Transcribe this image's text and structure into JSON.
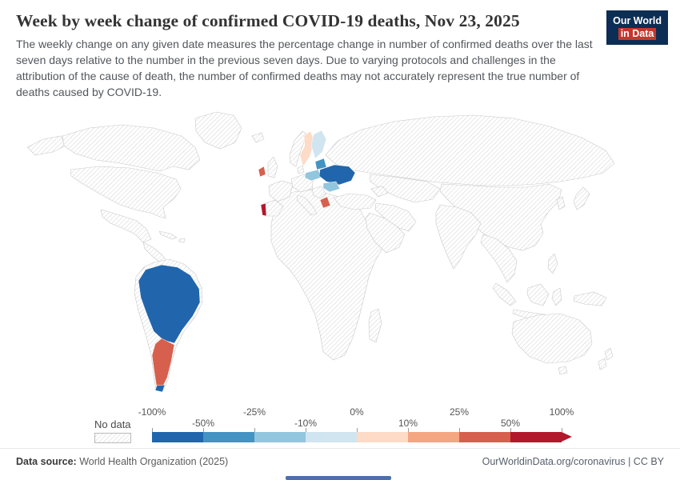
{
  "header": {
    "title": "Week by week change of confirmed COVID-19 deaths, Nov 23, 2025",
    "subtitle": "The weekly change on any given date measures the percentage change in number of confirmed deaths over the last seven days relative to the number in the previous seven days. Due to varying protocols and challenges in the attribution of the cause of death, the number of confirmed deaths may not accurately represent the true number of deaths caused by COVID-19.",
    "logo": {
      "line1": "Our World",
      "line2": "in Data",
      "bg": "#0d2e54",
      "accent": "#c7362c"
    }
  },
  "legend": {
    "no_data_label": "No data",
    "ticks": [
      {
        "label": "-100%",
        "row": "top"
      },
      {
        "label": "-50%",
        "row": "bottom"
      },
      {
        "label": "-25%",
        "row": "top"
      },
      {
        "label": "-10%",
        "row": "bottom"
      },
      {
        "label": "0%",
        "row": "top"
      },
      {
        "label": "10%",
        "row": "bottom"
      },
      {
        "label": "25%",
        "row": "top"
      },
      {
        "label": "50%",
        "row": "bottom"
      },
      {
        "label": "100%",
        "row": "top"
      }
    ],
    "segment_colors": [
      "#2166ac",
      "#4393c3",
      "#92c5de",
      "#d1e5f0",
      "#fddbc7",
      "#f4a582",
      "#d6604d",
      "#b2182b"
    ],
    "arrow_color": "#b2182b"
  },
  "map": {
    "no_data_style": "hatched",
    "regions": {
      "sa-north": "#2166ac",
      "southern-cone": "#d6604d",
      "sa-tip": "#2166ac",
      "portugal": "#b2182b",
      "ireland": "#d6604d",
      "greece": "#d6604d",
      "ukraine": "#2166ac",
      "sweden": "#fddbc7",
      "finland": "#d1e5f0",
      "poland": "#92c5de",
      "romania": "#92c5de",
      "baltics": "#4393c3"
    }
  },
  "chart_data": {
    "type": "choropleth",
    "title": "Week by week change of confirmed COVID-19 deaths",
    "date": "Nov 23, 2025",
    "unit": "%",
    "scale_type": "diverging",
    "scale_ticks_percent": [
      -100,
      -50,
      -25,
      -10,
      0,
      10,
      25,
      50,
      100
    ],
    "no_data": "hatched",
    "regions": [
      {
        "name": "Brazil",
        "bin": "-100% to -50%",
        "color": "#2166ac"
      },
      {
        "name": "Colombia",
        "bin": "-100% to -50%",
        "color": "#2166ac"
      },
      {
        "name": "Peru",
        "bin": "-100% to -50%",
        "color": "#2166ac"
      },
      {
        "name": "Bolivia",
        "bin": "-100% to -50%",
        "color": "#2166ac"
      },
      {
        "name": "Argentina",
        "bin": "25% to 50%",
        "color": "#d6604d"
      },
      {
        "name": "Chile",
        "bin": "25% to 50%",
        "color": "#d6604d"
      },
      {
        "name": "Portugal",
        "bin": "50% to 100%",
        "color": "#b2182b"
      },
      {
        "name": "Ireland",
        "bin": "25% to 50%",
        "color": "#d6604d"
      },
      {
        "name": "Greece",
        "bin": "25% to 50%",
        "color": "#d6604d"
      },
      {
        "name": "Ukraine",
        "bin": "-100% to -50%",
        "color": "#2166ac"
      },
      {
        "name": "Baltic states",
        "bin": "-50% to -25%",
        "color": "#4393c3"
      },
      {
        "name": "Poland",
        "bin": "-25% to -10%",
        "color": "#92c5de"
      },
      {
        "name": "Romania",
        "bin": "-25% to -10%",
        "color": "#92c5de"
      },
      {
        "name": "Sweden",
        "bin": "0% to 10%",
        "color": "#fddbc7"
      },
      {
        "name": "Finland",
        "bin": "-10% to 0%",
        "color": "#d1e5f0"
      }
    ],
    "all_other_countries": "No data"
  },
  "footer": {
    "source_label": "Data source:",
    "source_text": " World Health Organization (2025)",
    "right_text": "OurWorldinData.org/coronavirus | CC BY"
  },
  "timeline": {
    "color": "#4d6fae"
  }
}
